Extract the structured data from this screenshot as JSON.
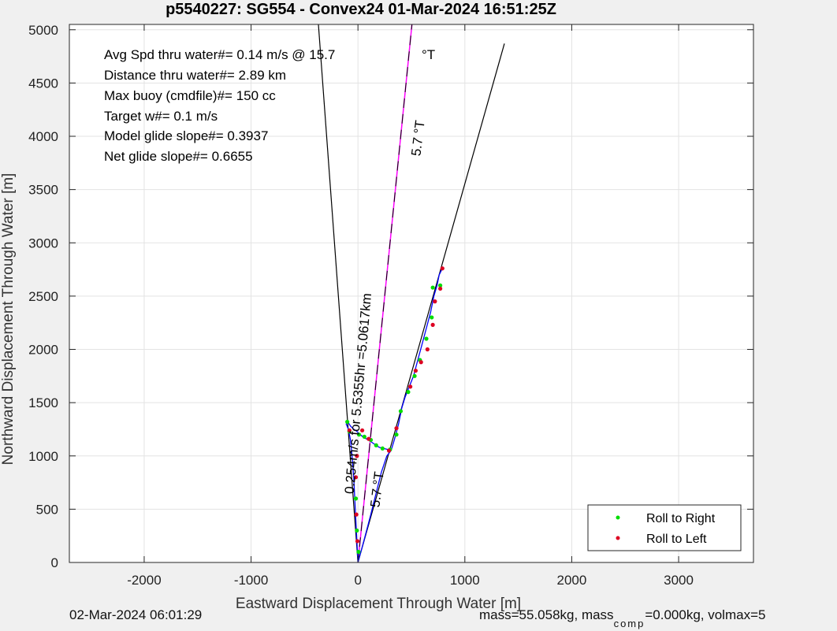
{
  "chart_data": {
    "type": "line",
    "title": "p5540227: SG554 - Convex24 01-Mar-2024 16:51:25Z",
    "xlabel": "Eastward Displacement Through Water [m]",
    "ylabel": "Northward Displacement Through Water [m]",
    "xlim": [
      -2700,
      3700
    ],
    "ylim": [
      0,
      5050
    ],
    "xticks": [
      -2000,
      -1000,
      0,
      1000,
      2000,
      3000
    ],
    "yticks": [
      0,
      500,
      1000,
      1500,
      2000,
      2500,
      3000,
      3500,
      4000,
      4500,
      5000
    ],
    "grid": true,
    "legend_position": "bottom-right",
    "annotations": [
      "Avg Spd thru water#=  0.14 m/s @  15.7",
      "Distance thru water#=  2.89 km",
      "Max buoy (cmdfile)#= 150 cc",
      "Target w#= 0.1 m/s",
      "Model glide slope#= 0.3937",
      "Net glide slope#= 0.6655"
    ],
    "degree_label": "°T",
    "rotated_labels": {
      "heading_upper": "5.7 °T",
      "heading_lower": "5.7 °T",
      "current": "0.254m/s for 5.5355hr =5.0617km"
    },
    "series": [
      {
        "name": "Roll to Right",
        "color": "#00dd00"
      },
      {
        "name": "Roll to Left",
        "color": "#dd0022"
      }
    ],
    "lines": {
      "left_leg": {
        "from": [
          0,
          0
        ],
        "to": [
          -370,
          5050
        ]
      },
      "right_leg": {
        "from": [
          0,
          0
        ],
        "to": [
          1370,
          4870
        ]
      },
      "current_vector": {
        "from": [
          0,
          0
        ],
        "to": [
          505,
          5050
        ],
        "color": "#ff00ff"
      }
    },
    "track_outbound": [
      [
        0,
        0
      ],
      [
        -10,
        200
      ],
      [
        -25,
        500
      ],
      [
        -40,
        800
      ],
      [
        -55,
        1000
      ],
      [
        -70,
        1150
      ],
      [
        -90,
        1250
      ],
      [
        -110,
        1300
      ],
      [
        -95,
        1320
      ],
      [
        -70,
        1280
      ],
      [
        -40,
        1250
      ],
      [
        -10,
        1230
      ],
      [
        20,
        1200
      ],
      [
        60,
        1170
      ],
      [
        100,
        1150
      ],
      [
        140,
        1120
      ],
      [
        170,
        1100
      ],
      [
        200,
        1080
      ],
      [
        240,
        1070
      ],
      [
        280,
        1060
      ]
    ],
    "track_return": [
      [
        0,
        0
      ],
      [
        60,
        220
      ],
      [
        120,
        450
      ],
      [
        170,
        650
      ],
      [
        220,
        850
      ],
      [
        270,
        1000
      ],
      [
        310,
        1050
      ],
      [
        340,
        1150
      ],
      [
        380,
        1300
      ],
      [
        410,
        1450
      ],
      [
        440,
        1550
      ],
      [
        480,
        1650
      ],
      [
        520,
        1750
      ],
      [
        560,
        1900
      ],
      [
        600,
        2050
      ],
      [
        640,
        2200
      ],
      [
        680,
        2350
      ],
      [
        710,
        2500
      ],
      [
        740,
        2600
      ],
      [
        760,
        2700
      ],
      [
        790,
        2760
      ]
    ],
    "roll_right_points": [
      [
        -100,
        1320
      ],
      [
        -80,
        1230
      ],
      [
        10,
        1200
      ],
      [
        60,
        1180
      ],
      [
        120,
        1150
      ],
      [
        170,
        1100
      ],
      [
        230,
        1070
      ],
      [
        300,
        1060
      ],
      [
        360,
        1200
      ],
      [
        400,
        1420
      ],
      [
        470,
        1600
      ],
      [
        530,
        1750
      ],
      [
        580,
        1900
      ],
      [
        640,
        2100
      ],
      [
        690,
        2300
      ],
      [
        700,
        2580
      ],
      [
        770,
        2600
      ],
      [
        -10,
        300
      ],
      [
        5,
        100
      ],
      [
        -20,
        600
      ]
    ],
    "roll_left_points": [
      [
        -80,
        1240
      ],
      [
        40,
        1240
      ],
      [
        100,
        1160
      ],
      [
        290,
        1050
      ],
      [
        360,
        1260
      ],
      [
        490,
        1650
      ],
      [
        540,
        1800
      ],
      [
        590,
        1880
      ],
      [
        650,
        2000
      ],
      [
        700,
        2230
      ],
      [
        720,
        2450
      ],
      [
        770,
        2570
      ],
      [
        790,
        2760
      ],
      [
        -5,
        200
      ],
      [
        -15,
        450
      ],
      [
        -20,
        800
      ],
      [
        -10,
        1000
      ]
    ]
  },
  "footer": {
    "left": "02-Mar-2024 06:01:29",
    "right_main": "mass=55.058kg, mass",
    "right_sub": "comp",
    "right_tail": "=0.000kg, volmax=5"
  }
}
